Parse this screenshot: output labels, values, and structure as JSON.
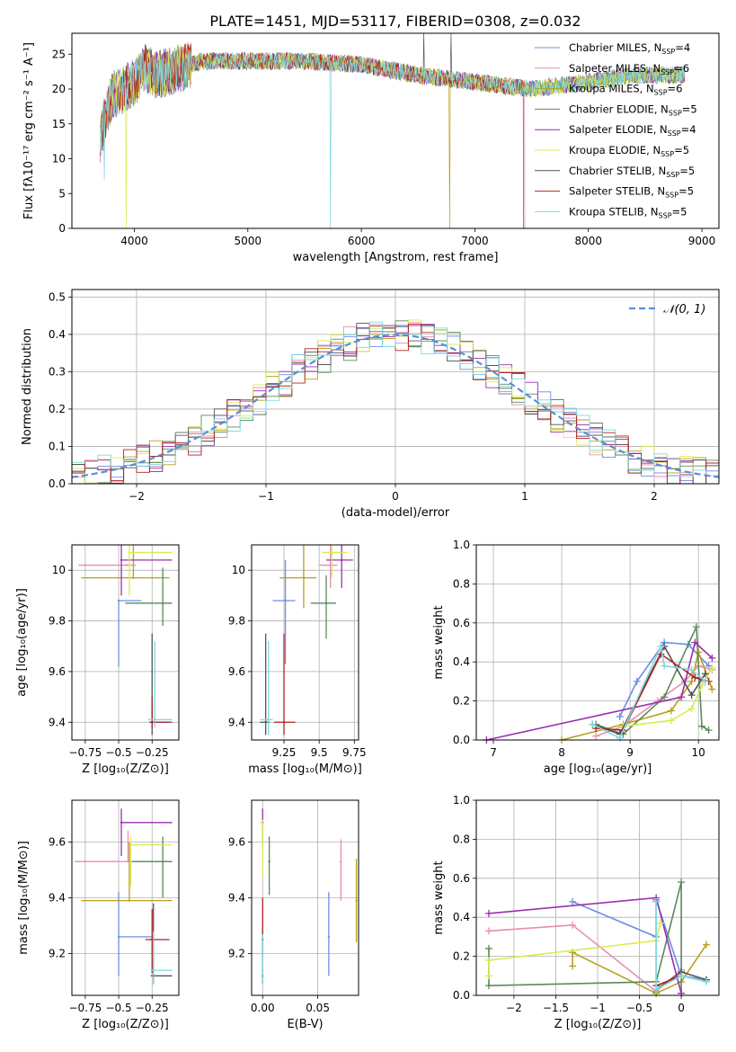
{
  "title": "PLATE=1451, MJD=53117, FIBERID=0308, z=0.032",
  "models": [
    {
      "color": "#6b8fe0",
      "label": "Chabrier MILES, N",
      "sub": "SSP",
      "val": "=4"
    },
    {
      "color": "#e88cb8",
      "label": "Salpeter MILES, N",
      "sub": "SSP",
      "val": "=6"
    },
    {
      "color": "#b8a020",
      "label": "Kroupa MILES, N",
      "sub": "SSP",
      "val": "=6"
    },
    {
      "color": "#5a8a5a",
      "label": "Chabrier ELODIE, N",
      "sub": "SSP",
      "val": "=5"
    },
    {
      "color": "#9a2fb0",
      "label": "Salpeter ELODIE, N",
      "sub": "SSP",
      "val": "=4"
    },
    {
      "color": "#d8ec50",
      "label": "Kroupa ELODIE, N",
      "sub": "SSP",
      "val": "=5"
    },
    {
      "color": "#555555",
      "label": "Chabrier STELIB, N",
      "sub": "SSP",
      "val": "=5"
    },
    {
      "color": "#b22020",
      "label": "Salpeter STELIB, N",
      "sub": "SSP",
      "val": "=5"
    },
    {
      "color": "#7fd8e0",
      "label": "Kroupa STELIB, N",
      "sub": "SSP",
      "val": "=5"
    }
  ],
  "chart_data": [
    {
      "id": "spectrum",
      "type": "line",
      "xlabel": "wavelength [Angstrom, rest frame]",
      "ylabel": "Flux [fλ10⁻¹⁷ erg cm⁻² s⁻¹ A⁻¹]",
      "xlim": [
        3450,
        9150
      ],
      "ylim": [
        0,
        28
      ],
      "xticks": [
        4000,
        5000,
        6000,
        7000,
        8000,
        9000
      ],
      "yticks": [
        0,
        5,
        10,
        15,
        20,
        25
      ],
      "envelope": [
        [
          3700,
          13
        ],
        [
          3800,
          19
        ],
        [
          3900,
          20
        ],
        [
          4000,
          21
        ],
        [
          4100,
          23
        ],
        [
          4200,
          22
        ],
        [
          4400,
          23
        ],
        [
          4600,
          24
        ],
        [
          5000,
          24
        ],
        [
          5500,
          24
        ],
        [
          6000,
          23.5
        ],
        [
          6500,
          22
        ],
        [
          7000,
          21
        ],
        [
          7500,
          20
        ],
        [
          8000,
          21
        ],
        [
          8400,
          22
        ],
        [
          8800,
          22
        ]
      ],
      "features": [
        {
          "model": 8,
          "x": 3735,
          "y": 7
        },
        {
          "model": 5,
          "x": 3930,
          "y": 0
        },
        {
          "model": 8,
          "x": 5730,
          "y": 0
        },
        {
          "model": 2,
          "x": 6780,
          "y": 0
        },
        {
          "model": 6,
          "x": 6790,
          "y": 28
        },
        {
          "model": 6,
          "x": 6550,
          "y": 28
        }
      ],
      "cutoffs": [
        {
          "model": 7,
          "x_end": 7430
        },
        {
          "model": 1,
          "x_end": 7440
        }
      ]
    },
    {
      "id": "residuals",
      "type": "step",
      "xlabel": "(data-model)/error",
      "ylabel": "Normed distribution",
      "xlim": [
        -2.5,
        2.5
      ],
      "ylim": [
        0,
        0.52
      ],
      "xticks": [
        -2,
        -1,
        0,
        1,
        2
      ],
      "yticks": [
        0.0,
        0.1,
        0.2,
        0.3,
        0.4,
        0.5
      ],
      "bin_width": 0.1,
      "legend": "𝒩(0, 1)",
      "reference": "normal(0,1)"
    },
    {
      "id": "age_vs_Z",
      "type": "scatter",
      "xlabel": "Z [log₁₀(Z/Z⊙)]",
      "ylabel": "age  [log₁₀(age/yr)]",
      "xlim": [
        -0.85,
        -0.05
      ],
      "ylim": [
        9.33,
        10.1
      ],
      "xticks": [
        -0.75,
        -0.5,
        -0.25
      ],
      "yticks": [
        9.4,
        9.6,
        9.8,
        10.0
      ],
      "points": [
        {
          "m": 0,
          "x": -0.5,
          "xe": [
            -0.5,
            -0.33
          ],
          "y": 9.88,
          "ye": [
            9.62,
            9.88
          ]
        },
        {
          "m": 1,
          "x": -0.44,
          "xe": [
            -0.8,
            -0.37
          ],
          "y": 10.02,
          "ye": [
            10.02,
            10.02
          ]
        },
        {
          "m": 2,
          "x": -0.39,
          "xe": [
            -0.78,
            -0.12
          ],
          "y": 9.97,
          "ye": [
            9.97,
            10.1
          ]
        },
        {
          "m": 3,
          "x": -0.17,
          "xe": [
            -0.45,
            -0.1
          ],
          "y": 9.87,
          "ye": [
            9.78,
            10.01
          ]
        },
        {
          "m": 4,
          "x": -0.48,
          "xe": [
            -0.48,
            -0.1
          ],
          "y": 10.04,
          "ye": [
            9.9,
            10.1
          ]
        },
        {
          "m": 5,
          "x": -0.42,
          "xe": [
            -0.42,
            -0.1
          ],
          "y": 10.07,
          "ye": [
            9.9,
            10.1
          ]
        },
        {
          "m": 6,
          "x": -0.25,
          "xe": [
            -0.27,
            -0.1
          ],
          "y": 9.4,
          "ye": [
            9.35,
            9.75
          ]
        },
        {
          "m": 7,
          "x": -0.25,
          "xe": [
            -0.27,
            -0.12
          ],
          "y": 9.4,
          "ye": [
            9.38,
            9.5
          ]
        },
        {
          "m": 8,
          "x": -0.23,
          "xe": [
            -0.28,
            -0.1
          ],
          "y": 9.41,
          "ye": [
            9.38,
            9.72
          ]
        }
      ]
    },
    {
      "id": "age_vs_mass",
      "type": "scatter",
      "xlabel": "mass [log₁₀(M/M⊙)]",
      "ylabel": "",
      "xlim": [
        9.02,
        9.78
      ],
      "ylim": [
        9.33,
        10.1
      ],
      "xticks": [
        9.25,
        9.5,
        9.75
      ],
      "yticks": [
        9.4,
        9.6,
        9.8,
        10.0
      ],
      "points": [
        {
          "m": 0,
          "x": 9.26,
          "xe": [
            9.17,
            9.33
          ],
          "y": 9.88,
          "ye": [
            9.63,
            10.04
          ]
        },
        {
          "m": 1,
          "x": 9.58,
          "xe": [
            9.5,
            9.63
          ],
          "y": 10.02,
          "ye": [
            9.93,
            10.1
          ]
        },
        {
          "m": 2,
          "x": 9.39,
          "xe": [
            9.22,
            9.48
          ],
          "y": 9.97,
          "ye": [
            9.85,
            10.1
          ]
        },
        {
          "m": 3,
          "x": 9.55,
          "xe": [
            9.44,
            9.62
          ],
          "y": 9.87,
          "ye": [
            9.73,
            9.98
          ]
        },
        {
          "m": 4,
          "x": 9.66,
          "xe": [
            9.55,
            9.74
          ],
          "y": 10.04,
          "ye": [
            9.93,
            10.1
          ]
        },
        {
          "m": 5,
          "x": 9.59,
          "xe": [
            9.52,
            9.7
          ],
          "y": 10.07,
          "ye": [
            9.97,
            10.1
          ]
        },
        {
          "m": 6,
          "x": 9.12,
          "xe": [
            9.08,
            9.15
          ],
          "y": 9.4,
          "ye": [
            9.35,
            9.75
          ]
        },
        {
          "m": 7,
          "x": 9.25,
          "xe": [
            9.18,
            9.33
          ],
          "y": 9.4,
          "ye": [
            9.35,
            9.75
          ]
        },
        {
          "m": 8,
          "x": 9.14,
          "xe": [
            9.08,
            9.17
          ],
          "y": 9.41,
          "ye": [
            9.35,
            9.72
          ]
        }
      ]
    },
    {
      "id": "weight_vs_age",
      "type": "line",
      "xlabel": "age  [log₁₀(age/yr)]",
      "ylabel": "mass weight",
      "xlim": [
        6.75,
        10.3
      ],
      "ylim": [
        0,
        1
      ],
      "xticks": [
        7,
        8,
        9,
        10
      ],
      "yticks": [
        0.0,
        0.2,
        0.4,
        0.6,
        0.8,
        1.0
      ],
      "series": [
        {
          "m": 0,
          "x": [
            8.85,
            9.1,
            9.5,
            9.85,
            10.15
          ],
          "y": [
            0.12,
            0.3,
            0.5,
            0.49,
            0.38
          ]
        },
        {
          "m": 1,
          "x": [
            8.5,
            8.9,
            9.4,
            9.8,
            10.0,
            10.2
          ],
          "y": [
            0.02,
            0.07,
            0.2,
            0.3,
            0.38,
            0.36
          ]
        },
        {
          "m": 2,
          "x": [
            8.0,
            8.9,
            9.6,
            9.9,
            10.0,
            10.2
          ],
          "y": [
            0.0,
            0.08,
            0.15,
            0.3,
            0.45,
            0.26
          ]
        },
        {
          "m": 3,
          "x": [
            8.5,
            8.9,
            9.5,
            9.97,
            10.05,
            10.15
          ],
          "y": [
            0.08,
            0.03,
            0.22,
            0.58,
            0.07,
            0.05
          ]
        },
        {
          "m": 4,
          "x": [
            6.9,
            9.75,
            9.95,
            10.2
          ],
          "y": [
            0.0,
            0.22,
            0.5,
            0.42
          ]
        },
        {
          "m": 5,
          "x": [
            8.9,
            9.6,
            9.9,
            10.05,
            10.2
          ],
          "y": [
            0.07,
            0.1,
            0.16,
            0.28,
            0.37
          ]
        },
        {
          "m": 6,
          "x": [
            8.45,
            8.85,
            9.5,
            9.9,
            10.1
          ],
          "y": [
            0.08,
            0.03,
            0.48,
            0.23,
            0.34
          ]
        },
        {
          "m": 7,
          "x": [
            8.5,
            8.9,
            9.45,
            9.95,
            10.15
          ],
          "y": [
            0.06,
            0.05,
            0.44,
            0.32,
            0.3
          ]
        },
        {
          "m": 8,
          "x": [
            8.45,
            8.85,
            9.45,
            9.5,
            9.9,
            10.1
          ],
          "y": [
            0.08,
            0.01,
            0.48,
            0.38,
            0.36,
            0.3
          ]
        }
      ]
    },
    {
      "id": "mass_vs_Z",
      "type": "scatter",
      "xlabel": "Z [log₁₀(Z/Z⊙)]",
      "ylabel": "mass [log₁₀(M/M⊙)]",
      "xlim": [
        -0.85,
        -0.05
      ],
      "ylim": [
        9.05,
        9.75
      ],
      "xticks": [
        -0.75,
        -0.5,
        -0.25
      ],
      "yticks": [
        9.2,
        9.4,
        9.6
      ],
      "points": [
        {
          "m": 0,
          "x": -0.5,
          "xe": [
            -0.5,
            -0.25
          ],
          "y": 9.26,
          "ye": [
            9.12,
            9.42
          ]
        },
        {
          "m": 1,
          "x": -0.43,
          "xe": [
            -0.83,
            -0.1
          ],
          "y": 9.53,
          "ye": [
            9.53,
            9.64
          ]
        },
        {
          "m": 2,
          "x": -0.42,
          "xe": [
            -0.78,
            -0.1
          ],
          "y": 9.39,
          "ye": [
            9.39,
            9.6
          ]
        },
        {
          "m": 3,
          "x": -0.17,
          "xe": [
            -0.4,
            -0.1
          ],
          "y": 9.53,
          "ye": [
            9.4,
            9.62
          ]
        },
        {
          "m": 4,
          "x": -0.48,
          "xe": [
            -0.48,
            -0.1
          ],
          "y": 9.67,
          "ye": [
            9.55,
            9.72
          ]
        },
        {
          "m": 5,
          "x": -0.41,
          "xe": [
            -0.41,
            -0.1
          ],
          "y": 9.59,
          "ye": [
            9.44,
            9.62
          ]
        },
        {
          "m": 6,
          "x": -0.24,
          "xe": [
            -0.26,
            -0.1
          ],
          "y": 9.12,
          "ye": [
            9.09,
            9.38
          ]
        },
        {
          "m": 7,
          "x": -0.25,
          "xe": [
            -0.3,
            -0.12
          ],
          "y": 9.25,
          "ye": [
            9.13,
            9.36
          ]
        },
        {
          "m": 8,
          "x": -0.24,
          "xe": [
            -0.26,
            -0.1
          ],
          "y": 9.14,
          "ye": [
            9.09,
            9.28
          ]
        }
      ]
    },
    {
      "id": "mass_vs_EBV",
      "type": "scatter",
      "xlabel": "E(B-V)",
      "ylabel": "",
      "xlim": [
        -0.01,
        0.087
      ],
      "ylim": [
        9.05,
        9.75
      ],
      "xticks": [
        0.0,
        0.05
      ],
      "xticklabels": [
        "0.00",
        "0.05"
      ],
      "yticks": [
        9.2,
        9.4,
        9.6
      ],
      "points": [
        {
          "m": 0,
          "x": 0.06,
          "xe": [
            0.06,
            0.06
          ],
          "y": 9.26,
          "ye": [
            9.12,
            9.42
          ]
        },
        {
          "m": 1,
          "x": 0.071,
          "xe": [
            0.071,
            0.071
          ],
          "y": 9.53,
          "ye": [
            9.39,
            9.61
          ]
        },
        {
          "m": 2,
          "x": 0.085,
          "xe": [
            0.085,
            0.085
          ],
          "y": 9.39,
          "ye": [
            9.24,
            9.54
          ]
        },
        {
          "m": 3,
          "x": 0.006,
          "xe": [
            0.006,
            0.006
          ],
          "y": 9.53,
          "ye": [
            9.41,
            9.62
          ]
        },
        {
          "m": 4,
          "x": 0.0,
          "xe": [
            0.0,
            0.0
          ],
          "y": 9.67,
          "ye": [
            9.6,
            9.72
          ]
        },
        {
          "m": 5,
          "x": 0.0,
          "xe": [
            0.0,
            0.0
          ],
          "y": 9.59,
          "ye": [
            9.48,
            9.68
          ]
        },
        {
          "m": 6,
          "x": 0.0,
          "xe": [
            0.0,
            0.0
          ],
          "y": 9.12,
          "ye": [
            9.09,
            9.28
          ]
        },
        {
          "m": 7,
          "x": 0.0,
          "xe": [
            0.0,
            0.0
          ],
          "y": 9.25,
          "ye": [
            9.19,
            9.4
          ]
        },
        {
          "m": 8,
          "x": 0.0,
          "xe": [
            0.0,
            0.0
          ],
          "y": 9.14,
          "ye": [
            9.09,
            9.27
          ]
        }
      ]
    },
    {
      "id": "weight_vs_Z",
      "type": "line",
      "xlabel": "Z [log₁₀(Z/Z⊙)]",
      "ylabel": "mass weight",
      "xlim": [
        -2.45,
        0.45
      ],
      "ylim": [
        0,
        1
      ],
      "xticks": [
        -2.0,
        -1.5,
        -1.0,
        -0.5,
        0.0
      ],
      "yticks": [
        0.0,
        0.2,
        0.4,
        0.6,
        0.8,
        1.0
      ],
      "series": [
        {
          "m": 0,
          "x": [
            -1.3,
            -0.3,
            -0.3,
            0.0,
            0.3
          ],
          "y": [
            0.48,
            0.3,
            0.49,
            0.1,
            0.08
          ]
        },
        {
          "m": 1,
          "x": [
            -2.3,
            -1.3,
            -0.3,
            0.0
          ],
          "y": [
            0.33,
            0.36,
            0.02,
            0.13
          ]
        },
        {
          "m": 2,
          "x": [
            -1.3,
            -1.3,
            -0.3,
            -0.3,
            0.0,
            0.3
          ],
          "y": [
            0.15,
            0.22,
            0.01,
            0.01,
            0.07,
            0.26
          ]
        },
        {
          "m": 3,
          "x": [
            -2.3,
            -2.3,
            -0.3,
            0.0,
            0.0
          ],
          "y": [
            0.24,
            0.05,
            0.07,
            0.58,
            0.01
          ]
        },
        {
          "m": 4,
          "x": [
            -2.3,
            -0.3,
            0.0
          ],
          "y": [
            0.42,
            0.5,
            0.01
          ]
        },
        {
          "m": 5,
          "x": [
            -2.3,
            -2.3,
            -0.3,
            -0.25
          ],
          "y": [
            0.1,
            0.18,
            0.28,
            0.37
          ]
        },
        {
          "m": 6,
          "x": [
            -0.3,
            -0.3,
            0.0,
            0.3
          ],
          "y": [
            0.48,
            0.03,
            0.12,
            0.08
          ]
        },
        {
          "m": 7,
          "x": [
            -0.3,
            0.0
          ],
          "y": [
            0.05,
            0.1
          ]
        },
        {
          "m": 8,
          "x": [
            -0.3,
            -0.3,
            0.0,
            0.3
          ],
          "y": [
            0.48,
            0.03,
            0.1,
            0.07
          ]
        }
      ]
    }
  ]
}
